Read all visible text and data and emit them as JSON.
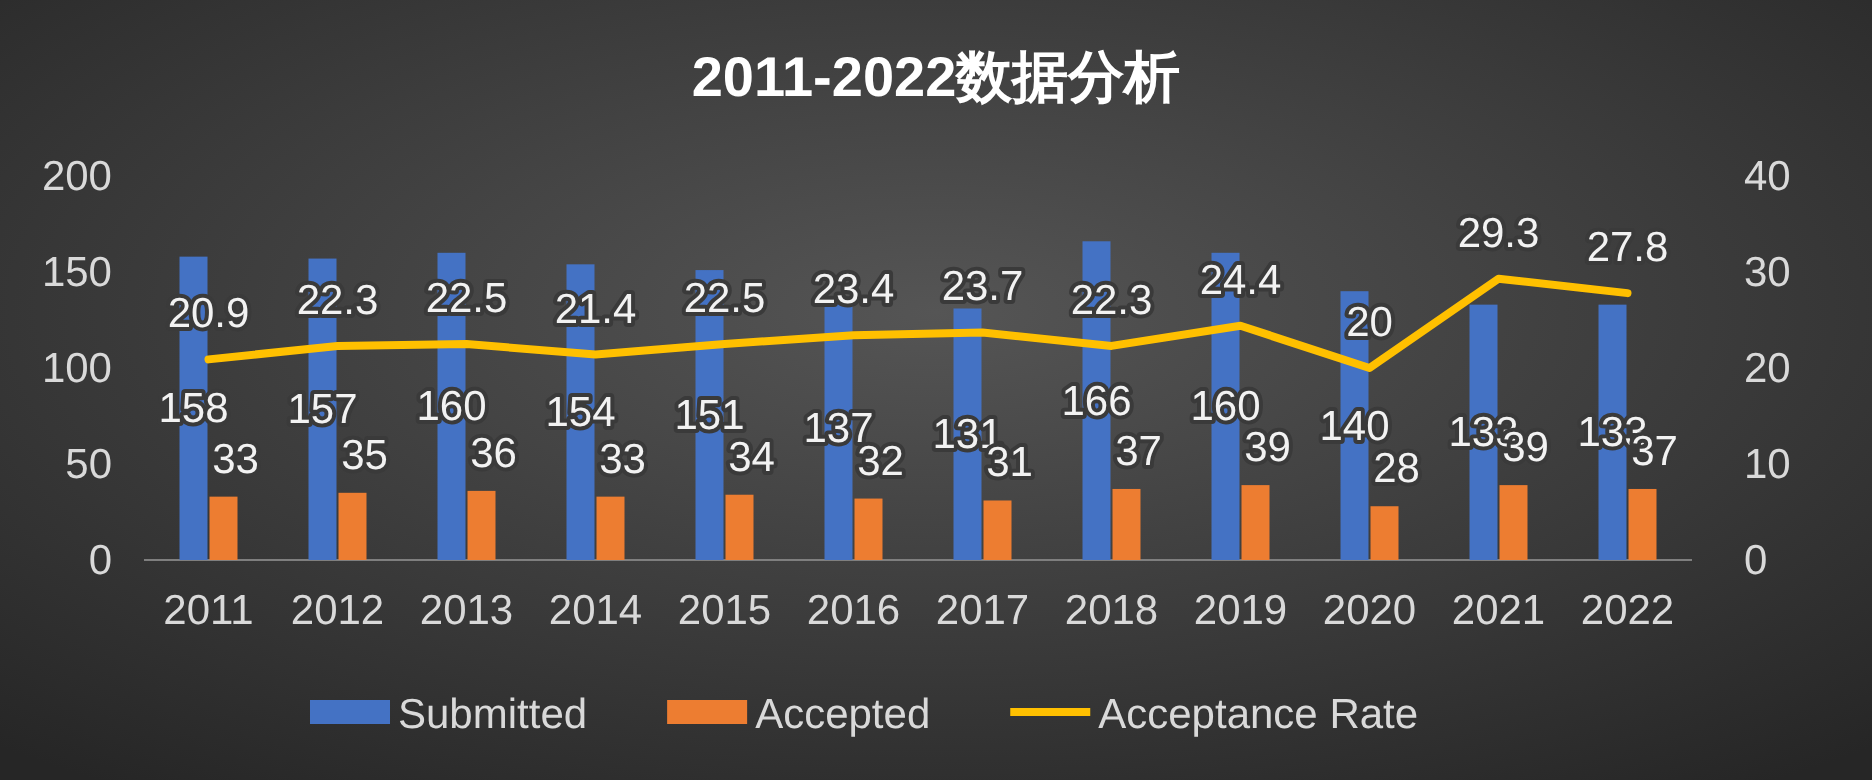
{
  "chart_data": {
    "type": "bar",
    "title": "2011-2022数据分析",
    "categories": [
      "2011",
      "2012",
      "2013",
      "2014",
      "2015",
      "2016",
      "2017",
      "2018",
      "2019",
      "2020",
      "2021",
      "2022"
    ],
    "series": [
      {
        "name": "Submitted",
        "color": "#4472c4",
        "values": [
          158,
          157,
          160,
          154,
          151,
          137,
          131,
          166,
          160,
          140,
          133,
          133
        ]
      },
      {
        "name": "Accepted",
        "color": "#ed7d31",
        "values": [
          33,
          35,
          36,
          33,
          34,
          32,
          31,
          37,
          39,
          28,
          39,
          37
        ]
      },
      {
        "name": "Acceptance Rate",
        "type": "line",
        "axis": "y2",
        "color": "#ffc000",
        "values": [
          20.9,
          22.3,
          22.5,
          21.4,
          22.5,
          23.4,
          23.7,
          22.3,
          24.4,
          20,
          29.3,
          27.8
        ]
      }
    ],
    "ylim": [
      0,
      200
    ],
    "yticks": [
      0,
      50,
      100,
      150,
      200
    ],
    "y2lim": [
      0,
      40
    ],
    "y2ticks": [
      0,
      10,
      20,
      30,
      40
    ],
    "data_labels": true,
    "legend": "bottom"
  }
}
